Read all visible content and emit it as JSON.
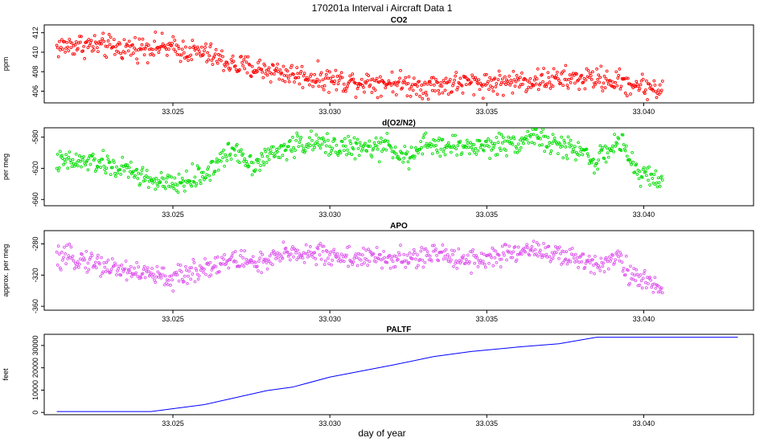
{
  "figure": {
    "title": "170201a   Interval i Aircraft Data 1",
    "xlabel": "day of year"
  },
  "chart_data": [
    {
      "type": "scatter",
      "title": "CO2",
      "ylabel": "ppm",
      "color": "#ff0000",
      "xlim": [
        33.0209,
        33.0435
      ],
      "ylim": [
        404.8,
        412.8
      ],
      "x_ticks": [
        33.025,
        33.03,
        33.035,
        33.04
      ],
      "x_tick_labels": [
        "33.025",
        "33.030",
        "33.035",
        "33.040"
      ],
      "y_ticks": [
        406,
        408,
        410,
        412
      ],
      "y_tick_labels": [
        "406",
        "408",
        "410",
        "412"
      ],
      "x_start": 33.0213,
      "x_end": 33.0406,
      "trend": [
        [
          33.0213,
          410.5
        ],
        [
          33.022,
          410.8
        ],
        [
          33.0235,
          410.4
        ],
        [
          33.0245,
          410.6
        ],
        [
          33.026,
          409.9
        ],
        [
          33.027,
          408.6
        ],
        [
          33.028,
          408.2
        ],
        [
          33.029,
          407.6
        ],
        [
          33.0305,
          407.0
        ],
        [
          33.032,
          406.9
        ],
        [
          33.033,
          406.5
        ],
        [
          33.034,
          406.8
        ],
        [
          33.0355,
          406.9
        ],
        [
          33.037,
          407.2
        ],
        [
          33.0385,
          407.3
        ],
        [
          33.0395,
          406.8
        ],
        [
          33.0406,
          406.2
        ]
      ],
      "noise": 0.6
    },
    {
      "type": "scatter",
      "title": "d(O2/N2)",
      "ylabel": "per meg",
      "color": "#00dd00",
      "xlim": [
        33.0209,
        33.0435
      ],
      "ylim": [
        -668,
        -568
      ],
      "x_ticks": [
        33.025,
        33.03,
        33.035,
        33.04
      ],
      "x_tick_labels": [
        "33.025",
        "33.030",
        "33.035",
        "33.040"
      ],
      "y_ticks": [
        -660,
        -620,
        -580
      ],
      "y_tick_labels": [
        "-660",
        "-620",
        "-580"
      ],
      "x_start": 33.0213,
      "x_end": 33.0406,
      "trend": [
        [
          33.0213,
          -612
        ],
        [
          33.0225,
          -612
        ],
        [
          33.0235,
          -622
        ],
        [
          33.0245,
          -638
        ],
        [
          33.025,
          -642
        ],
        [
          33.026,
          -628
        ],
        [
          33.027,
          -594
        ],
        [
          33.0275,
          -615
        ],
        [
          33.028,
          -605
        ],
        [
          33.029,
          -588
        ],
        [
          33.03,
          -590
        ],
        [
          33.031,
          -595
        ],
        [
          33.032,
          -592
        ],
        [
          33.0325,
          -610
        ],
        [
          33.033,
          -590
        ],
        [
          33.034,
          -592
        ],
        [
          33.035,
          -592
        ],
        [
          33.036,
          -586
        ],
        [
          33.0366,
          -576
        ],
        [
          33.037,
          -590
        ],
        [
          33.038,
          -596
        ],
        [
          33.0385,
          -612
        ],
        [
          33.0392,
          -585
        ],
        [
          33.0398,
          -625
        ],
        [
          33.0406,
          -636
        ]
      ],
      "noise": 7
    },
    {
      "type": "scatter",
      "title": "APO",
      "ylabel": "approx. per meg",
      "color": "#dd55ee",
      "xlim": [
        33.0209,
        33.0435
      ],
      "ylim": [
        -365,
        -263
      ],
      "x_ticks": [
        33.025,
        33.03,
        33.035,
        33.04
      ],
      "x_tick_labels": [
        "33.025",
        "33.030",
        "33.035",
        "33.040"
      ],
      "y_ticks": [
        -360,
        -320,
        -280
      ],
      "y_tick_labels": [
        "-360",
        "-320",
        "-280"
      ],
      "x_start": 33.0213,
      "x_end": 33.0406,
      "trend": [
        [
          33.0213,
          -300
        ],
        [
          33.022,
          -298
        ],
        [
          33.023,
          -310
        ],
        [
          33.024,
          -317
        ],
        [
          33.025,
          -325
        ],
        [
          33.026,
          -310
        ],
        [
          33.027,
          -300
        ],
        [
          33.028,
          -305
        ],
        [
          33.0287,
          -290
        ],
        [
          33.03,
          -295
        ],
        [
          33.031,
          -298
        ],
        [
          33.0325,
          -300
        ],
        [
          33.0335,
          -293
        ],
        [
          33.0345,
          -300
        ],
        [
          33.0355,
          -296
        ],
        [
          33.0365,
          -285
        ],
        [
          33.0375,
          -298
        ],
        [
          33.0385,
          -305
        ],
        [
          33.0392,
          -295
        ],
        [
          33.0397,
          -325
        ],
        [
          33.0406,
          -335
        ]
      ],
      "noise": 7
    },
    {
      "type": "line",
      "title": "PALTF",
      "ylabel": "feet",
      "color": "#0000ff",
      "xlim": [
        33.0209,
        33.0435
      ],
      "ylim": [
        -1000,
        35000
      ],
      "x_ticks": [
        33.025,
        33.03,
        33.035,
        33.04
      ],
      "x_tick_labels": [
        "33.025",
        "33.030",
        "33.035",
        "33.040"
      ],
      "y_ticks": [
        0,
        10000,
        20000,
        30000
      ],
      "y_tick_labels": [
        "0",
        "10000",
        "20000",
        "30000"
      ],
      "points": [
        [
          33.0213,
          400
        ],
        [
          33.0243,
          400
        ],
        [
          33.026,
          3500
        ],
        [
          33.028,
          9800
        ],
        [
          33.0288,
          11300
        ],
        [
          33.03,
          15800
        ],
        [
          33.032,
          21200
        ],
        [
          33.0333,
          25000
        ],
        [
          33.0345,
          27300
        ],
        [
          33.036,
          29300
        ],
        [
          33.0373,
          30800
        ],
        [
          33.0385,
          33700
        ],
        [
          33.043,
          33700
        ]
      ]
    }
  ]
}
